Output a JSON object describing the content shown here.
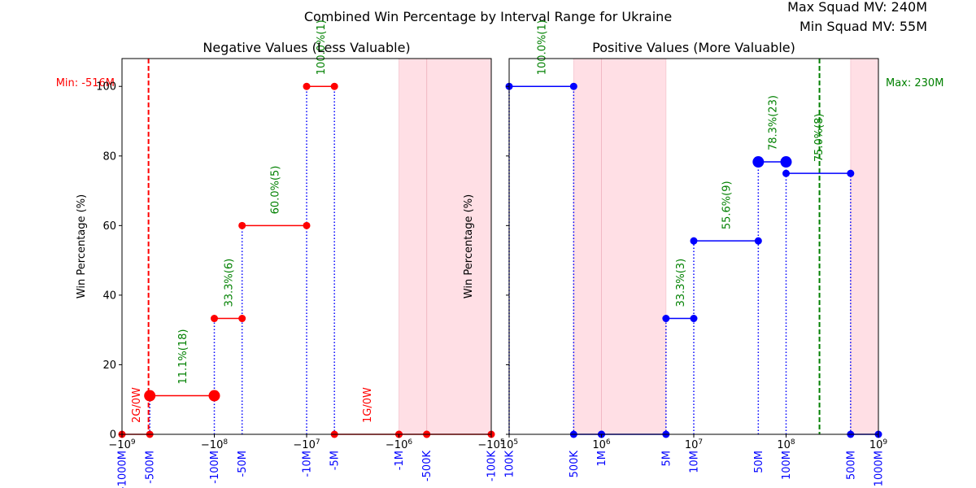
{
  "figure": {
    "suptitle": "Combined Win Percentage by Interval Range for Ukraine",
    "max_squad_label": "Max Squad MV: 240M",
    "min_squad_label": "Min Squad MV: 55M"
  },
  "colors": {
    "negative_series": "#ff0000",
    "positive_series": "#0000ff",
    "annotation_green": "#008000",
    "annotation_red": "#ff0000",
    "highlight_band": "#ffc0cb",
    "tick_label_blue": "#0000ff"
  },
  "chart_data": [
    {
      "id": "negative",
      "type": "line",
      "title": "Negative Values (Less Valuable)",
      "ylabel": "Win Percentage (%)",
      "xscale": "symlog (negative)",
      "xlim": [
        -1000000000,
        -100000
      ],
      "ylim": [
        0,
        108
      ],
      "yticks": [
        0,
        20,
        40,
        60,
        80,
        100
      ],
      "xticks": [
        {
          "value": -1000000000,
          "label": "−10^9"
        },
        {
          "value": -100000000,
          "label": "−10^8"
        },
        {
          "value": -10000000,
          "label": "−10^7"
        },
        {
          "value": -1000000,
          "label": "−10^6"
        },
        {
          "value": -100000,
          "label": "−10^5"
        }
      ],
      "interval_ticks": [
        {
          "value": -1000000000,
          "label": "-1000M"
        },
        {
          "value": -500000000,
          "label": "-500M"
        },
        {
          "value": -100000000,
          "label": "-100M"
        },
        {
          "value": -50000000,
          "label": "-50M"
        },
        {
          "value": -10000000,
          "label": "-10M"
        },
        {
          "value": -5000000,
          "label": "-5M"
        },
        {
          "value": -1000000,
          "label": "-1M"
        },
        {
          "value": -500000,
          "label": "-500K"
        },
        {
          "value": -100000,
          "label": "-100K"
        }
      ],
      "shaded_ranges": [
        {
          "from": -1000000,
          "to": -500000
        },
        {
          "from": -500000,
          "to": -100000
        }
      ],
      "reference_line": {
        "value": -516000000,
        "label": "Min: -516M",
        "color": "#ff0000"
      },
      "segments": [
        {
          "from": -1000000000,
          "to": -500000000,
          "win_pct": 0,
          "label": "2G/0W",
          "label_color": "red",
          "big": false
        },
        {
          "from": -500000000,
          "to": -100000000,
          "win_pct": 11.1,
          "label": "11.1%(18)",
          "label_color": "green",
          "big": true
        },
        {
          "from": -100000000,
          "to": -50000000,
          "win_pct": 33.3,
          "label": "33.3%(6)",
          "label_color": "green",
          "big": false
        },
        {
          "from": -50000000,
          "to": -10000000,
          "win_pct": 60.0,
          "label": "60.0%(5)",
          "label_color": "green",
          "big": false
        },
        {
          "from": -10000000,
          "to": -5000000,
          "win_pct": 100.0,
          "label": "100.0%(1)",
          "label_color": "green",
          "big": false
        },
        {
          "from": -5000000,
          "to": -1000000,
          "win_pct": 0,
          "label": "1G/0W",
          "label_color": "red",
          "big": false
        },
        {
          "from": -1000000,
          "to": -500000,
          "win_pct": 0,
          "label": "",
          "label_color": "red",
          "big": false
        },
        {
          "from": -500000,
          "to": -100000,
          "win_pct": 0,
          "label": "",
          "label_color": "red",
          "big": false
        }
      ]
    },
    {
      "id": "positive",
      "type": "line",
      "title": "Positive Values (More Valuable)",
      "ylabel": "Win Percentage (%)",
      "xscale": "log",
      "xlim": [
        100000,
        1000000000
      ],
      "ylim": [
        0,
        108
      ],
      "yticks": [
        0,
        20,
        40,
        60,
        80,
        100
      ],
      "xticks": [
        {
          "value": 100000,
          "label": "10^5"
        },
        {
          "value": 1000000,
          "label": "10^6"
        },
        {
          "value": 10000000,
          "label": "10^7"
        },
        {
          "value": 100000000,
          "label": "10^8"
        },
        {
          "value": 1000000000,
          "label": "10^9"
        }
      ],
      "interval_ticks": [
        {
          "value": 100000,
          "label": "100K"
        },
        {
          "value": 500000,
          "label": "500K"
        },
        {
          "value": 1000000,
          "label": "1M"
        },
        {
          "value": 5000000,
          "label": "5M"
        },
        {
          "value": 10000000,
          "label": "10M"
        },
        {
          "value": 50000000,
          "label": "50M"
        },
        {
          "value": 100000000,
          "label": "100M"
        },
        {
          "value": 500000000,
          "label": "500M"
        },
        {
          "value": 1000000000,
          "label": "1000M"
        }
      ],
      "shaded_ranges": [
        {
          "from": 500000,
          "to": 1000000
        },
        {
          "from": 1000000,
          "to": 5000000
        },
        {
          "from": 500000000,
          "to": 1000000000
        }
      ],
      "reference_line": {
        "value": 230000000,
        "label": "Max: 230M",
        "color": "#008000"
      },
      "segments": [
        {
          "from": 100000,
          "to": 500000,
          "win_pct": 100.0,
          "label": "100.0%(1)",
          "label_color": "green",
          "big": false
        },
        {
          "from": 500000,
          "to": 1000000,
          "win_pct": 0,
          "label": "",
          "label_color": "green",
          "big": false
        },
        {
          "from": 1000000,
          "to": 5000000,
          "win_pct": 0,
          "label": "",
          "label_color": "green",
          "big": false
        },
        {
          "from": 5000000,
          "to": 10000000,
          "win_pct": 33.3,
          "label": "33.3%(3)",
          "label_color": "green",
          "big": false
        },
        {
          "from": 10000000,
          "to": 50000000,
          "win_pct": 55.6,
          "label": "55.6%(9)",
          "label_color": "green",
          "big": false
        },
        {
          "from": 50000000,
          "to": 100000000,
          "win_pct": 78.3,
          "label": "78.3%(23)",
          "label_color": "green",
          "big": true
        },
        {
          "from": 100000000,
          "to": 500000000,
          "win_pct": 75.0,
          "label": "75.0%(8)",
          "label_color": "green",
          "big": false
        },
        {
          "from": 500000000,
          "to": 1000000000,
          "win_pct": 0,
          "label": "",
          "label_color": "green",
          "big": false
        }
      ]
    }
  ]
}
